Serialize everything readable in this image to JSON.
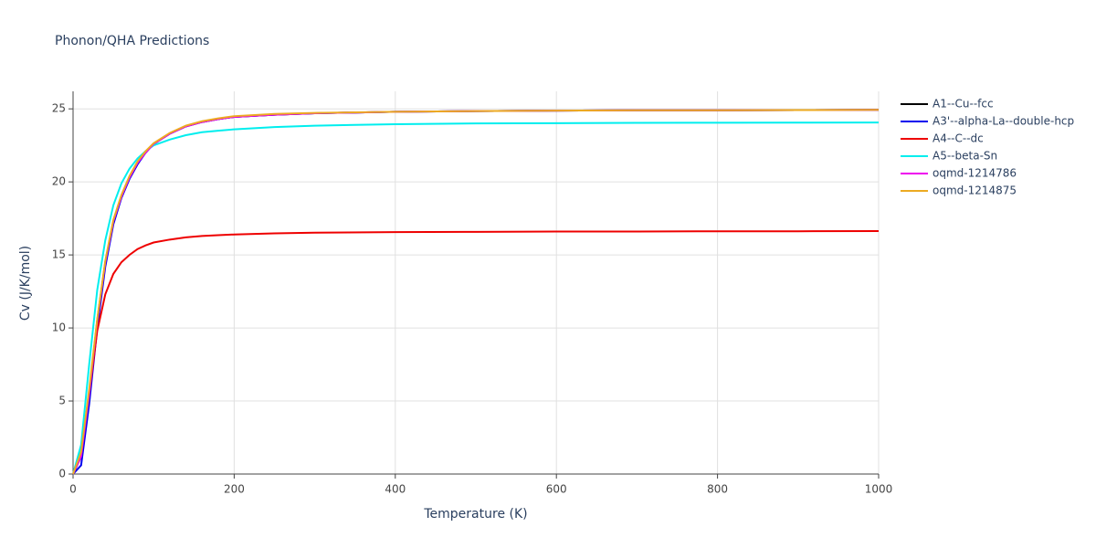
{
  "chart_data": {
    "type": "line",
    "title": "Phonon/QHA Predictions",
    "x_label": "Temperature (K)",
    "y_label": "Cv (J/K/mol)",
    "x": [
      0,
      10,
      20,
      30,
      40,
      50,
      60,
      70,
      80,
      90,
      100,
      120,
      140,
      160,
      180,
      200,
      250,
      300,
      400,
      500,
      600,
      700,
      800,
      900,
      1000
    ],
    "series": [
      {
        "name": "A1--Cu--fcc",
        "color": "#000000",
        "values": [
          0,
          1.2,
          5.5,
          10.5,
          14.5,
          17.3,
          19.0,
          20.3,
          21.3,
          22.0,
          22.6,
          23.3,
          23.8,
          24.1,
          24.3,
          24.45,
          24.6,
          24.7,
          24.8,
          24.85,
          24.88,
          24.9,
          24.9,
          24.92,
          24.93
        ]
      },
      {
        "name": "A3'--alpha-La--double-hcp",
        "color": "#0000ee",
        "values": [
          0,
          0.6,
          4.8,
          10.0,
          14.2,
          17.1,
          18.9,
          20.2,
          21.2,
          22.0,
          22.6,
          23.3,
          23.8,
          24.1,
          24.3,
          24.45,
          24.6,
          24.7,
          24.8,
          24.85,
          24.88,
          24.9,
          24.9,
          24.92,
          24.93
        ]
      },
      {
        "name": "A4--C--dc",
        "color": "#ee0000",
        "values": [
          0,
          1.5,
          5.5,
          9.8,
          12.3,
          13.7,
          14.5,
          15.0,
          15.4,
          15.65,
          15.85,
          16.05,
          16.2,
          16.3,
          16.35,
          16.4,
          16.48,
          16.52,
          16.56,
          16.58,
          16.6,
          16.6,
          16.62,
          16.62,
          16.63
        ]
      },
      {
        "name": "A5--beta-Sn",
        "color": "#00eeee",
        "values": [
          0,
          2.0,
          7.5,
          12.6,
          16.0,
          18.4,
          19.9,
          20.9,
          21.6,
          22.1,
          22.5,
          22.9,
          23.2,
          23.4,
          23.5,
          23.6,
          23.75,
          23.85,
          23.95,
          24.0,
          24.02,
          24.04,
          24.05,
          24.06,
          24.07
        ]
      },
      {
        "name": "oqmd-1214786",
        "color": "#ee00ee",
        "values": [
          0,
          1.2,
          5.5,
          10.5,
          14.5,
          17.3,
          19.0,
          20.3,
          21.3,
          22.0,
          22.6,
          23.3,
          23.8,
          24.1,
          24.3,
          24.45,
          24.6,
          24.7,
          24.8,
          24.85,
          24.88,
          24.9,
          24.9,
          24.92,
          24.93
        ]
      },
      {
        "name": "oqmd-1214875",
        "color": "#ecaa22",
        "values": [
          0,
          1.5,
          5.8,
          10.6,
          14.6,
          17.4,
          19.1,
          20.4,
          21.4,
          22.1,
          22.65,
          23.35,
          23.85,
          24.15,
          24.35,
          24.5,
          24.65,
          24.72,
          24.8,
          24.85,
          24.88,
          24.9,
          24.9,
          24.92,
          24.93
        ]
      }
    ],
    "xlim": [
      0,
      1000
    ],
    "xticks": [
      0,
      200,
      400,
      600,
      800,
      1000
    ],
    "ylim": [
      0,
      26.2
    ],
    "yticks": [
      0,
      5,
      10,
      15,
      20,
      25
    ],
    "grid": true,
    "legend": "right"
  }
}
